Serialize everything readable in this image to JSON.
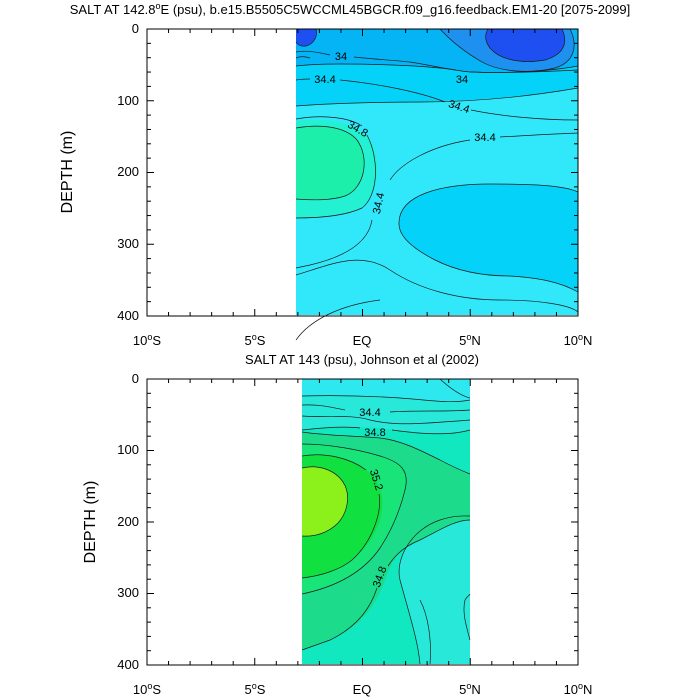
{
  "chart_data": [
    {
      "type": "contour",
      "title": "SALT AT 142.8",
      "title_sup": "o",
      "title_rest": "E (psu), b.e15.B5505C5WCCML45BGCR.f09_g16.feedback.EM1-20 [2075-2099]",
      "ylabel": "DEPTH (m)",
      "xlabel": "",
      "xlim": [
        -10,
        10
      ],
      "ylim": [
        0,
        400
      ],
      "y_ticks": [
        "0",
        "100",
        "200",
        "300",
        "400"
      ],
      "x_ticks": [
        {
          "deg": "10",
          "sup": "o",
          "hemi": "S"
        },
        {
          "deg": "5",
          "sup": "o",
          "hemi": "S"
        },
        {
          "deg": "EQ",
          "sup": "",
          "hemi": ""
        },
        {
          "deg": "5",
          "sup": "o",
          "hemi": "N"
        },
        {
          "deg": "10",
          "sup": "o",
          "hemi": "N"
        }
      ],
      "data_extent_lon": [
        -3.1,
        10
      ],
      "contour_labels": [
        "34",
        "34.4",
        "34",
        "34.4",
        "34.8",
        "34.4",
        "34.4"
      ],
      "level_colors": {
        "33.6": "#1e4ff0",
        "33.8": "#1d90f0",
        "34.0": "#05b4f5",
        "34.2": "#05d2f8",
        "34.4": "#30e8fa",
        "34.6": "#24f0d2",
        "34.8": "#1cefaa"
      }
    },
    {
      "type": "contour",
      "title": "SALT AT 143 (psu), Johnson et al (2002)",
      "ylabel": "DEPTH (m)",
      "xlabel": "",
      "xlim": [
        -10,
        10
      ],
      "ylim": [
        0,
        400
      ],
      "y_ticks": [
        "0",
        "100",
        "200",
        "300",
        "400"
      ],
      "x_ticks": [
        {
          "deg": "10",
          "sup": "o",
          "hemi": "S"
        },
        {
          "deg": "5",
          "sup": "o",
          "hemi": "S"
        },
        {
          "deg": "EQ",
          "sup": "",
          "hemi": ""
        },
        {
          "deg": "5",
          "sup": "o",
          "hemi": "N"
        },
        {
          "deg": "10",
          "sup": "o",
          "hemi": "N"
        }
      ],
      "data_extent_lon": [
        -2.8,
        5
      ],
      "contour_labels": [
        "34.4",
        "34.8",
        "35.2",
        "34.8"
      ],
      "level_colors": {
        "34.2": "#2ee8f0",
        "34.4": "#28e8da",
        "34.6": "#12e8c0",
        "34.8": "#1cdc8c",
        "35.0": "#18e478",
        "35.2": "#10e040",
        "35.4": "#8cf01a"
      }
    }
  ]
}
